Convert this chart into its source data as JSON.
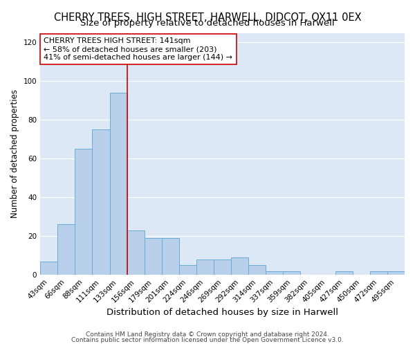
{
  "title": "CHERRY TREES, HIGH STREET, HARWELL, DIDCOT, OX11 0EX",
  "subtitle": "Size of property relative to detached houses in Harwell",
  "xlabel": "Distribution of detached houses by size in Harwell",
  "ylabel": "Number of detached properties",
  "categories": [
    "43sqm",
    "66sqm",
    "88sqm",
    "111sqm",
    "133sqm",
    "156sqm",
    "179sqm",
    "201sqm",
    "224sqm",
    "246sqm",
    "269sqm",
    "292sqm",
    "314sqm",
    "337sqm",
    "359sqm",
    "382sqm",
    "405sqm",
    "427sqm",
    "450sqm",
    "472sqm",
    "495sqm"
  ],
  "values": [
    7,
    26,
    65,
    75,
    94,
    23,
    19,
    19,
    5,
    8,
    8,
    9,
    5,
    2,
    2,
    0,
    0,
    2,
    0,
    2,
    2
  ],
  "bar_color": "#b8d0ea",
  "bar_edge_color": "#6aaad4",
  "bar_linewidth": 0.7,
  "vline_pos": 4.5,
  "vline_color": "#cc0000",
  "vline_linewidth": 1.2,
  "annotation_line1": "CHERRY TREES HIGH STREET: 141sqm",
  "annotation_line2": "← 58% of detached houses are smaller (203)",
  "annotation_line3": "41% of semi-detached houses are larger (144) →",
  "annotation_box_color": "white",
  "annotation_box_edge_color": "#cc0000",
  "ylim": [
    0,
    125
  ],
  "yticks": [
    0,
    20,
    40,
    60,
    80,
    100,
    120
  ],
  "background_color": "#dce8f5",
  "grid_color": "white",
  "footer_line1": "Contains HM Land Registry data © Crown copyright and database right 2024.",
  "footer_line2": "Contains public sector information licensed under the Open Government Licence v3.0.",
  "title_fontsize": 10.5,
  "subtitle_fontsize": 9.5,
  "xlabel_fontsize": 9.5,
  "ylabel_fontsize": 8.5,
  "tick_fontsize": 7.5,
  "annotation_fontsize": 8,
  "footer_fontsize": 6.5
}
